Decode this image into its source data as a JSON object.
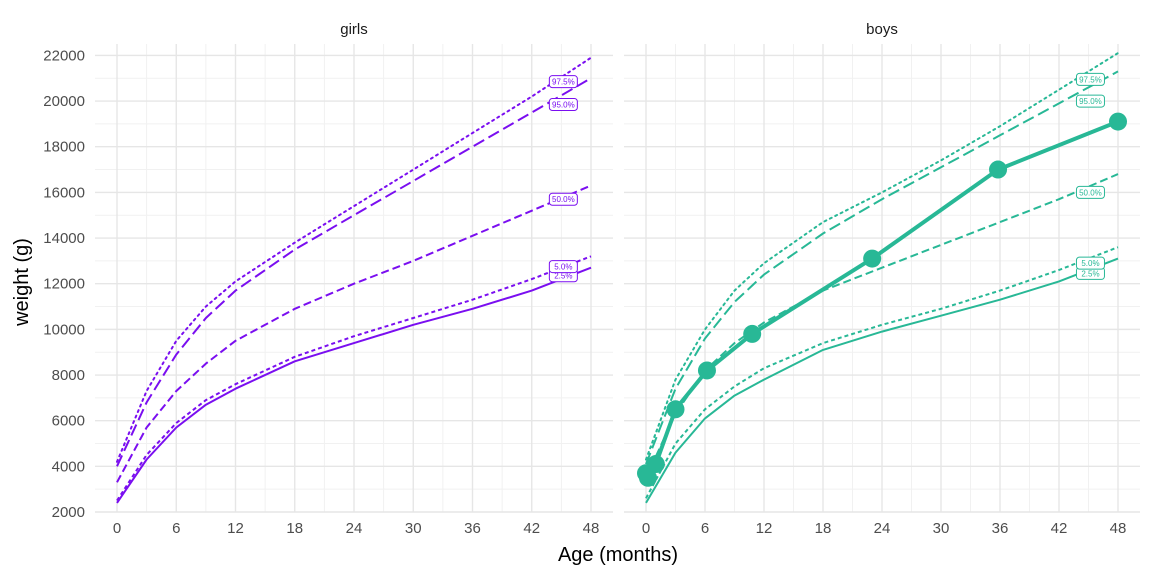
{
  "chart_data": {
    "type": "line",
    "xlabel": "Age (months)",
    "ylabel": "weight (g)",
    "xlim": [
      0,
      48
    ],
    "ylim": [
      2000,
      22500
    ],
    "x_ticks": [
      "0",
      "6",
      "12",
      "18",
      "24",
      "30",
      "36",
      "42",
      "48"
    ],
    "y_ticks": [
      "2000",
      "4000",
      "6000",
      "8000",
      "10000",
      "12000",
      "14000",
      "16000",
      "18000",
      "20000",
      "22000"
    ],
    "grid": true,
    "legend": "none",
    "panels": [
      {
        "title": "girls",
        "color": "#7a0ef0",
        "percentiles": [
          {
            "name": "2.5%",
            "label": "2.5%",
            "dash": "solid",
            "label_y": 12350,
            "x": [
              0,
              3,
              6,
              9,
              12,
              18,
              24,
              30,
              36,
              42,
              48
            ],
            "y": [
              2400,
              4300,
              5700,
              6700,
              7400,
              8600,
              9400,
              10200,
              10900,
              11700,
              12700
            ]
          },
          {
            "name": "5.0%",
            "label": "5.0%",
            "dash": "dot",
            "label_y": 12750,
            "x": [
              0,
              3,
              6,
              9,
              12,
              18,
              24,
              30,
              36,
              42,
              48
            ],
            "y": [
              2500,
              4500,
              5900,
              6900,
              7600,
              8800,
              9700,
              10500,
              11300,
              12200,
              13200
            ]
          },
          {
            "name": "50.0%",
            "label": "50.0%",
            "dash": "dash",
            "label_y": 15700,
            "x": [
              0,
              3,
              6,
              9,
              12,
              18,
              24,
              30,
              36,
              42,
              48
            ],
            "y": [
              3300,
              5700,
              7300,
              8500,
              9500,
              10900,
              12000,
              13000,
              14100,
              15200,
              16300
            ]
          },
          {
            "name": "95.0%",
            "label": "95.0%",
            "dash": "longdash",
            "label_y": 19850,
            "x": [
              0,
              3,
              6,
              9,
              12,
              18,
              24,
              30,
              36,
              42,
              48
            ],
            "y": [
              4000,
              6800,
              8900,
              10500,
              11700,
              13500,
              15000,
              16500,
              18000,
              19500,
              21000
            ]
          },
          {
            "name": "97.5%",
            "label": "97.5%",
            "dash": "dotted",
            "label_y": 20850,
            "x": [
              0,
              3,
              6,
              9,
              12,
              18,
              24,
              30,
              36,
              42,
              48
            ],
            "y": [
              4200,
              7300,
              9500,
              11000,
              12100,
              13800,
              15400,
              17000,
              18600,
              20200,
              21900
            ]
          }
        ]
      },
      {
        "title": "boys",
        "color": "#28b896",
        "percentiles": [
          {
            "name": "2.5%",
            "label": "2.5%",
            "dash": "solid",
            "label_y": 12450,
            "x": [
              0,
              3,
              6,
              9,
              12,
              18,
              24,
              30,
              36,
              42,
              48
            ],
            "y": [
              2400,
              4600,
              6100,
              7100,
              7800,
              9100,
              9900,
              10600,
              11300,
              12100,
              13100
            ]
          },
          {
            "name": "5.0%",
            "label": "5.0%",
            "dash": "dot",
            "label_y": 12900,
            "x": [
              0,
              3,
              6,
              9,
              12,
              18,
              24,
              30,
              36,
              42,
              48
            ],
            "y": [
              2600,
              5000,
              6500,
              7500,
              8300,
              9400,
              10200,
              10900,
              11700,
              12600,
              13600
            ]
          },
          {
            "name": "50.0%",
            "label": "50.0%",
            "dash": "dash",
            "label_y": 16000,
            "x": [
              0,
              3,
              6,
              9,
              12,
              18,
              24,
              30,
              36,
              42,
              48
            ],
            "y": [
              3500,
              6300,
              8200,
              9400,
              10300,
              11700,
              12700,
              13700,
              14700,
              15700,
              16800
            ]
          },
          {
            "name": "95.0%",
            "label": "95.0%",
            "dash": "longdash",
            "label_y": 20000,
            "x": [
              0,
              3,
              6,
              9,
              12,
              18,
              24,
              30,
              36,
              42,
              48
            ],
            "y": [
              4100,
              7400,
              9600,
              11200,
              12400,
              14200,
              15700,
              17100,
              18500,
              19900,
              21300
            ]
          },
          {
            "name": "97.5%",
            "label": "97.5%",
            "dash": "dotted",
            "label_y": 20950,
            "x": [
              0,
              3,
              6,
              9,
              12,
              18,
              24,
              30,
              36,
              42,
              48
            ],
            "y": [
              4300,
              7800,
              10000,
              11700,
              12900,
              14700,
              16000,
              17400,
              18900,
              20500,
              22100
            ]
          }
        ],
        "observations": {
          "x": [
            0,
            0.2,
            1,
            3,
            6.2,
            10.8,
            23,
            35.8,
            48
          ],
          "y": [
            3700,
            3500,
            4100,
            6500,
            8200,
            9800,
            13100,
            17000,
            19100
          ]
        }
      }
    ]
  }
}
